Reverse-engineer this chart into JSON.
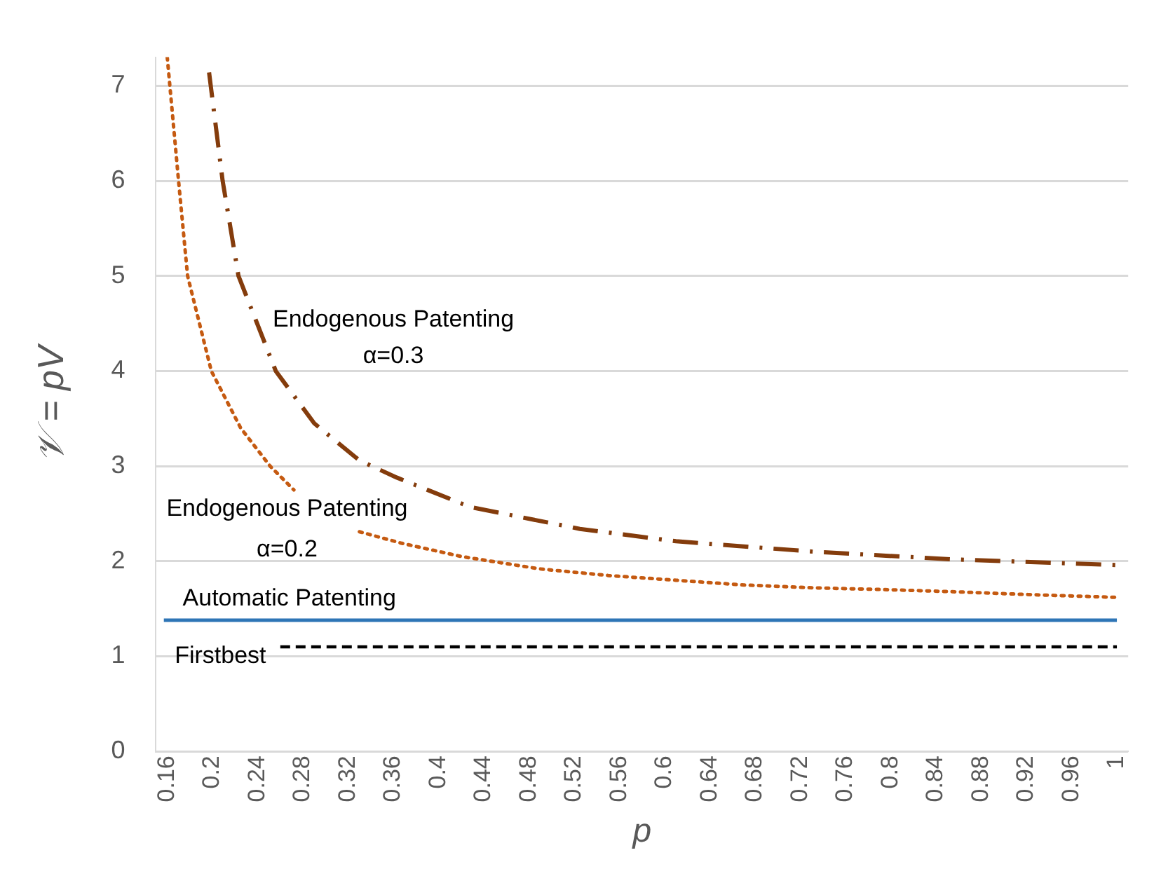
{
  "chart_data": {
    "type": "line",
    "xlabel": "p",
    "ylabel": "𝒱 = pV",
    "xlim": [
      0.15,
      1.01
    ],
    "xticks": [
      0.16,
      0.2,
      0.24,
      0.28,
      0.32,
      0.36,
      0.4,
      0.44,
      0.48,
      0.52,
      0.56,
      0.6,
      0.64,
      0.68,
      0.72,
      0.76,
      0.8,
      0.84,
      0.88,
      0.92,
      0.96,
      1
    ],
    "ylim": [
      0,
      7.3
    ],
    "yticks": [
      0,
      1,
      2,
      3,
      4,
      5,
      6,
      7
    ],
    "grid": "y",
    "legend": false,
    "marker": "none",
    "series": [
      {
        "color": "#c55a11",
        "line_style": "dotted",
        "x": [
          0.16,
          0.17,
          0.178,
          0.199,
          0.225,
          0.251,
          0.272,
          0.3,
          0.33,
          0.367,
          0.42,
          0.489,
          0.55,
          0.61,
          0.67,
          0.732,
          0.8,
          0.854,
          0.92,
          1
        ],
        "values": [
          7.3,
          6,
          5,
          4,
          3.4,
          3,
          2.75,
          null,
          2.31,
          2.19,
          2.05,
          1.92,
          1.85,
          1.8,
          1.75,
          1.72,
          1.7,
          1.68,
          1.65,
          1.62
        ]
      },
      {
        "color": "#843c0c",
        "line_style": "dashdot",
        "x": [
          0.197,
          0.209,
          0.223,
          0.256,
          0.29,
          0.33,
          0.363,
          0.428,
          0.525,
          0.61,
          0.732,
          0.854,
          1
        ],
        "values": [
          7.14,
          6,
          5,
          4,
          3.45,
          3.06,
          2.88,
          2.57,
          2.34,
          2.21,
          2.1,
          2.02,
          1.96
        ]
      },
      {
        "color": "#2e75b6",
        "line_style": "solid",
        "x": [
          0.157,
          1
        ],
        "values": [
          1.38,
          1.38
        ]
      },
      {
        "color": "#000000",
        "line_style": "dashed",
        "x": [
          0.26,
          1
        ],
        "values": [
          1.1,
          1.1
        ]
      }
    ],
    "annotations": [
      "Endogenous Patenting",
      "α=0.3",
      "Endogenous Patenting",
      "α=0.2",
      "Automatic Patenting",
      "Firstbest"
    ]
  }
}
